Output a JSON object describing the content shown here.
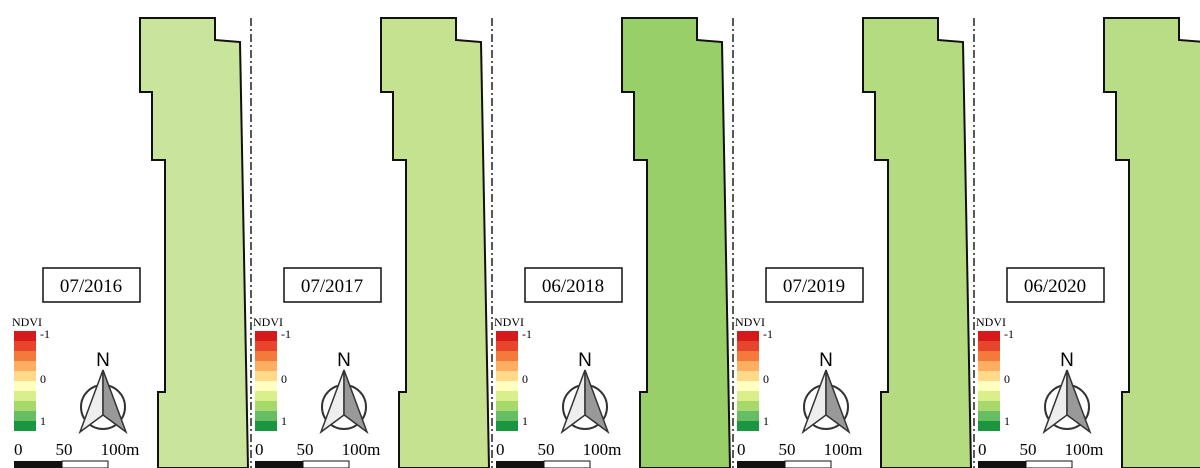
{
  "panels": [
    {
      "date": "07/2016",
      "legend_title": "NDVI",
      "legend_labels": [
        "-1",
        "0",
        "1"
      ],
      "north": "N",
      "scale_labels": [
        "0",
        "50",
        "100m"
      ],
      "fill": "#c9e49b"
    },
    {
      "date": "07/2017",
      "legend_title": "NDVI",
      "legend_labels": [
        "-1",
        "0",
        "1"
      ],
      "north": "N",
      "scale_labels": [
        "0",
        "50",
        "100m"
      ],
      "fill": "#c4e290"
    },
    {
      "date": "06/2018",
      "legend_title": "NDVI",
      "legend_labels": [
        "-1",
        "0",
        "1"
      ],
      "north": "N",
      "scale_labels": [
        "0",
        "50",
        "100m"
      ],
      "fill": "#98cf68"
    },
    {
      "date": "07/2019",
      "legend_title": "NDVI",
      "legend_labels": [
        "-1",
        "0",
        "1"
      ],
      "north": "N",
      "scale_labels": [
        "0",
        "50",
        "100m"
      ],
      "fill": "#b4db80"
    },
    {
      "date": "06/2020",
      "legend_title": "NDVI",
      "legend_labels": [
        "-1",
        "0",
        "1"
      ],
      "north": "N",
      "scale_labels": [
        "0",
        "50",
        "100m"
      ],
      "fill": "#b8dd86"
    }
  ]
}
